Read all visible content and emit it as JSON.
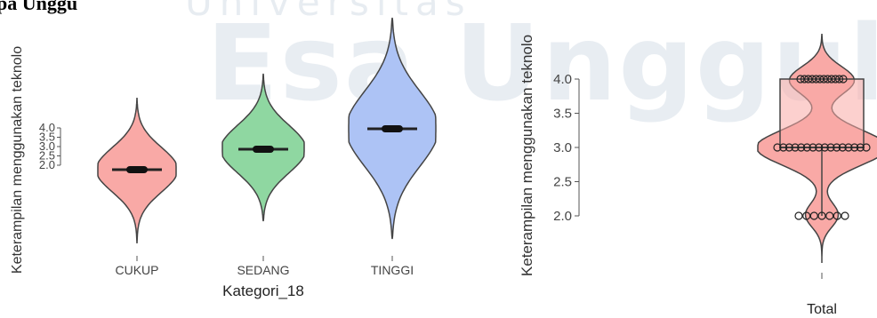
{
  "header_text": "pa Unggu",
  "watermark": {
    "line1": "Universitas",
    "line2": "Esa Unggul"
  },
  "chart_data": [
    {
      "type": "violin",
      "title": "",
      "xlabel": "Kategori_18",
      "ylabel": "Keterampilan menggunakan teknolo",
      "categories": [
        "CUKUP",
        "SEDANG",
        "TINGGI"
      ],
      "colors": [
        "#f9a9a6",
        "#8fd7a1",
        "#adc3f5"
      ],
      "medians": [
        2.0,
        3.0,
        4.0
      ],
      "y_ticks": [
        "4.0",
        "3.5",
        "3.0",
        "2.5",
        "2.0"
      ],
      "ylim": [
        2.0,
        4.0
      ]
    },
    {
      "type": "violin",
      "title": "",
      "xlabel": "",
      "ylabel": "Keterampilan menggunakan teknolo",
      "categories": [
        "Total"
      ],
      "color": "#f9a9a6",
      "y_ticks": [
        "4.0",
        "3.5",
        "3.0",
        "2.5",
        "2.0"
      ],
      "ylim": [
        2.0,
        4.0
      ],
      "box": {
        "q1": 3.0,
        "median": 3.0,
        "q3": 4.0,
        "min": 2.0,
        "max": 4.0
      },
      "points": [
        2.0,
        3.0,
        4.0
      ]
    }
  ]
}
